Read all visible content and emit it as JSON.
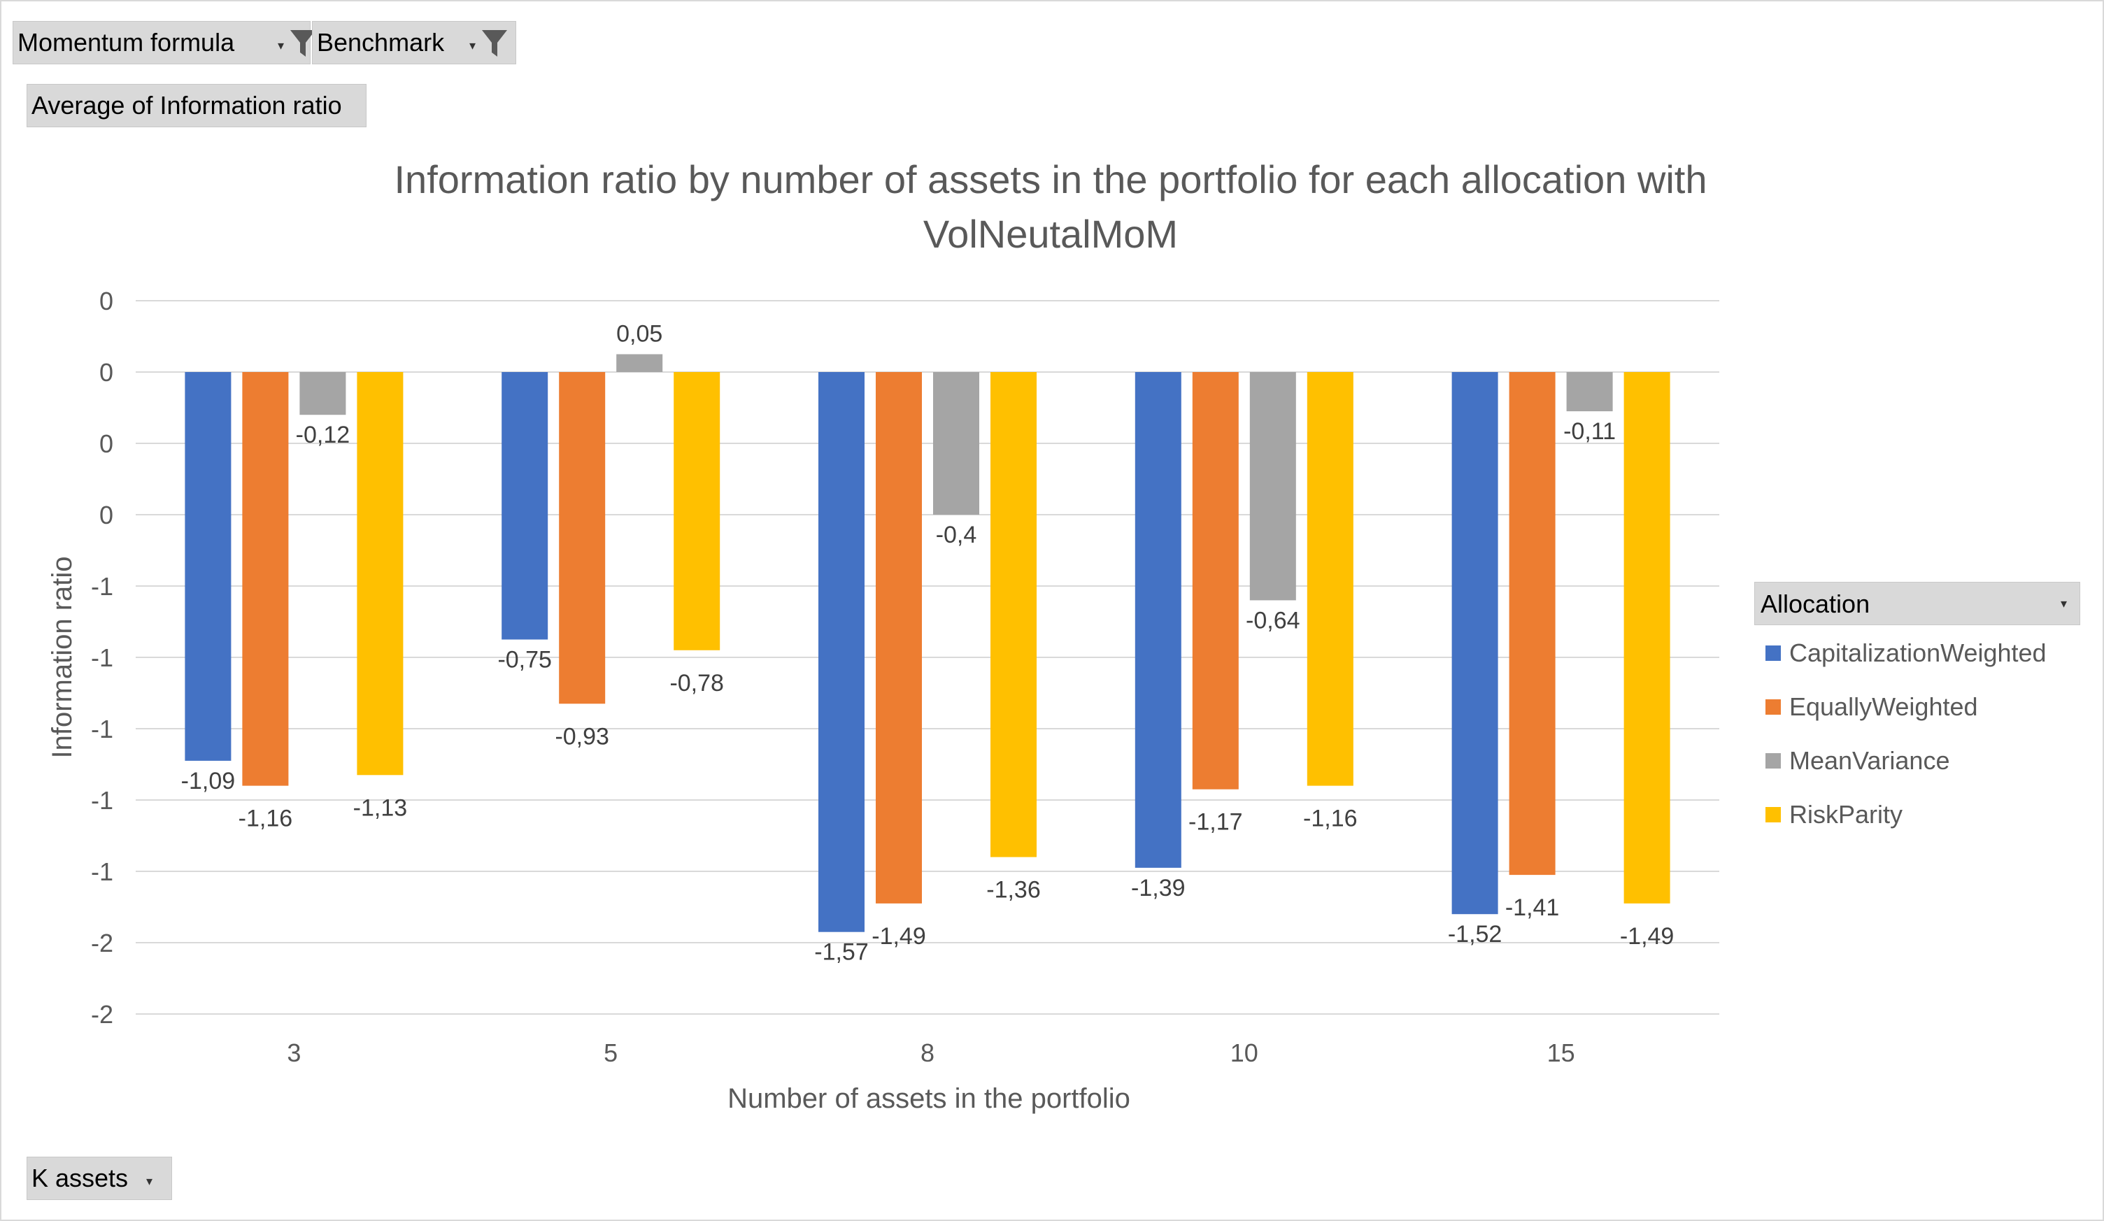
{
  "filters": {
    "momentum_formula": "Momentum formula",
    "benchmark": "Benchmark",
    "value_field": "Average of Information ratio",
    "axis_field": "K assets",
    "legend_field": "Allocation"
  },
  "colors": {
    "CapitalizationWeighted": "#4472c4",
    "EquallyWeighted": "#ed7d31",
    "MeanVariance": "#a5a5a5",
    "RiskParity": "#ffc000",
    "grid": "#d9d9d9",
    "axis_text": "#595959"
  },
  "chart_data": {
    "type": "bar",
    "title": "Information ratio by number of assets in the portfolio for each allocation with VolNeutalMoM",
    "xlabel": "Number of assets in the portfolio",
    "ylabel": "Information ratio",
    "categories": [
      "3",
      "5",
      "8",
      "10",
      "15"
    ],
    "ylim": [
      -1.8,
      0.2
    ],
    "y_ticks": [
      0.2,
      0,
      -0.2,
      -0.4,
      -0.6,
      -0.8,
      -1.0,
      -1.2,
      -1.4,
      -1.6,
      -1.8
    ],
    "y_tick_labels": [
      "0",
      "0",
      "0",
      "0",
      "-1",
      "-1",
      "-1",
      "-1",
      "-1",
      "-2",
      "-2"
    ],
    "grid": true,
    "legend_position": "right",
    "series": [
      {
        "name": "CapitalizationWeighted",
        "values": [
          -1.09,
          -0.75,
          -1.57,
          -1.39,
          -1.52
        ],
        "labels": [
          "-1,09",
          "-0,75",
          "-1,57",
          "-1,39",
          "-1,52"
        ]
      },
      {
        "name": "EquallyWeighted",
        "values": [
          -1.16,
          -0.93,
          -1.49,
          -1.17,
          -1.41
        ],
        "labels": [
          "-1,16",
          "-0,93",
          "-1,49",
          "-1,17",
          "-1,41"
        ]
      },
      {
        "name": "MeanVariance",
        "values": [
          -0.12,
          0.05,
          -0.4,
          -0.64,
          -0.11
        ],
        "labels": [
          "-0,12",
          "0,05",
          "-0,4",
          "-0,64",
          "-0,11"
        ]
      },
      {
        "name": "RiskParity",
        "values": [
          -1.13,
          -0.78,
          -1.36,
          -1.16,
          -1.49
        ],
        "labels": [
          "-1,13",
          "-0,78",
          "-1,36",
          "-1,16",
          "-1,49"
        ]
      }
    ]
  }
}
